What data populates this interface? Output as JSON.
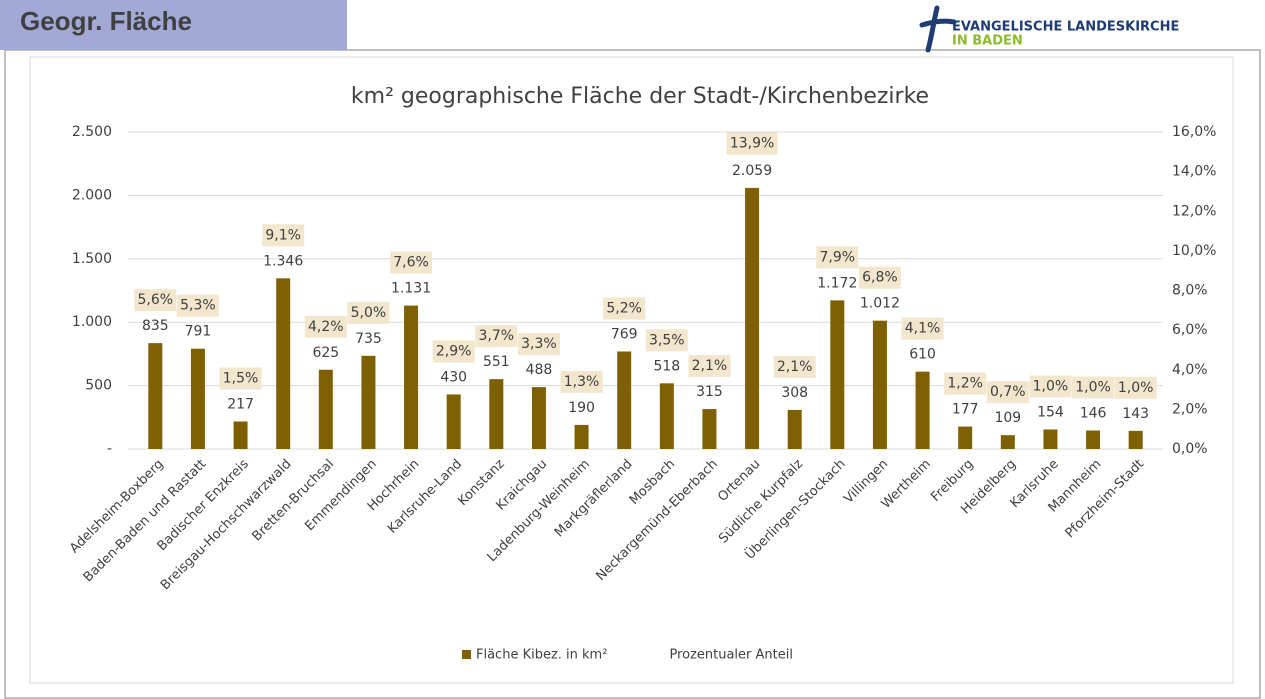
{
  "header": {
    "title": "Geogr. Fläche",
    "logo_line1": "EVANGELISCHE LANDESKIRCHE",
    "logo_line2": "IN BADEN"
  },
  "chart_data": {
    "type": "bar",
    "title": "km² geographische Fläche der Stadt-/Kirchenbezirke",
    "categories": [
      "Adelsheim-Boxberg",
      "Baden-Baden und Rastatt",
      "Badischer Enzkreis",
      "Breisgau-Hochschwarzwald",
      "Bretten-Bruchsal",
      "Emmendingen",
      "Hochrhein",
      "Karlsruhe-Land",
      "Konstanz",
      "Kraichgau",
      "Ladenburg-Weinheim",
      "Markgräflerland",
      "Mosbach",
      "Neckargemünd-Eberbach",
      "Ortenau",
      "Südliche Kurpfalz",
      "Überlingen-Stockach",
      "Villingen",
      "Wertheim",
      "Freiburg",
      "Heidelberg",
      "Karlsruhe",
      "Mannheim",
      "Pforzheim-Stadt"
    ],
    "series": [
      {
        "name": "Fläche Kibez. in km²",
        "color": "#7f6000",
        "values": [
          835,
          791,
          217,
          1346,
          625,
          735,
          1131,
          430,
          551,
          488,
          190,
          769,
          518,
          315,
          2059,
          308,
          1172,
          1012,
          610,
          177,
          109,
          154,
          146,
          143
        ],
        "value_labels": [
          "835",
          "791",
          "217",
          "1.346",
          "625",
          "735",
          "1.131",
          "430",
          "551",
          "488",
          "190",
          "769",
          "518",
          "315",
          "2.059",
          "308",
          "1.172",
          "1.012",
          "610",
          "177",
          "109",
          "154",
          "146",
          "143"
        ]
      },
      {
        "name": "Prozentualer Anteil",
        "axis": "y2",
        "color": "#f2e6cc",
        "values": [
          5.6,
          5.3,
          1.5,
          9.1,
          4.2,
          5.0,
          7.6,
          2.9,
          3.7,
          3.3,
          1.3,
          5.2,
          3.5,
          2.1,
          13.9,
          2.1,
          7.9,
          6.8,
          4.1,
          1.2,
          0.7,
          1.0,
          1.0,
          1.0
        ],
        "value_labels": [
          "5,6%",
          "5,3%",
          "1,5%",
          "9,1%",
          "4,2%",
          "5,0%",
          "7,6%",
          "2,9%",
          "3,7%",
          "3,3%",
          "1,3%",
          "5,2%",
          "3,5%",
          "2,1%",
          "13,9%",
          "2,1%",
          "7,9%",
          "6,8%",
          "4,1%",
          "1,2%",
          "0,7%",
          "1,0%",
          "1,0%",
          "1,0%"
        ]
      }
    ],
    "ylim": [
      0,
      2500
    ],
    "yticks": [
      {
        "value": 0,
        "label": "-"
      },
      500,
      {
        "value": 1000,
        "label": "1.000"
      },
      {
        "value": 1500,
        "label": "1.500"
      },
      {
        "value": 2000,
        "label": "2.000"
      },
      {
        "value": 2500,
        "label": "2.500"
      }
    ],
    "y2lim": [
      0,
      16
    ],
    "y2ticks": [
      {
        "value": 0,
        "label": "0,0%"
      },
      {
        "value": 2,
        "label": "2,0%"
      },
      {
        "value": 4,
        "label": "4,0%"
      },
      {
        "value": 6,
        "label": "6,0%"
      },
      {
        "value": 8,
        "label": "8,0%"
      },
      {
        "value": 10,
        "label": "10,0%"
      },
      {
        "value": 12,
        "label": "12,0%"
      },
      {
        "value": 14,
        "label": "14,0%"
      },
      {
        "value": 16,
        "label": "16,0%"
      }
    ],
    "grid": true,
    "legend": "bottom"
  }
}
